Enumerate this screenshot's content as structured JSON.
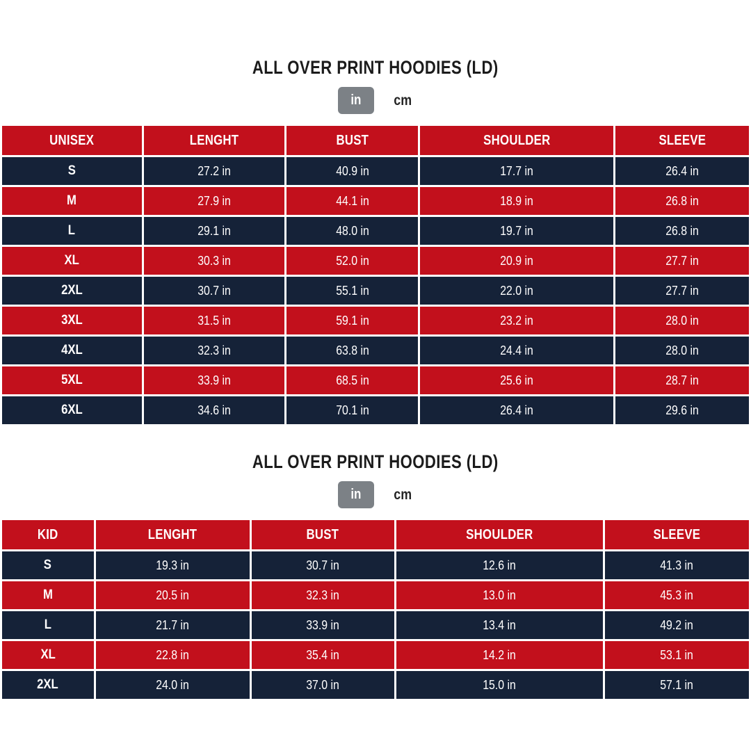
{
  "colors": {
    "red": "#c2101c",
    "navy": "#152238",
    "toggle_gray": "#7c8186",
    "cell_border": "#ffffff",
    "title_text": "#1b1b1b"
  },
  "sections": [
    {
      "title": "ALL OVER PRINT HOODIES (LD)",
      "unit_toggle": {
        "selected": "in",
        "in_label": "in",
        "cm_label": "cm"
      },
      "table": {
        "headers": [
          "UNISEX",
          "LENGHT",
          "BUST",
          "SHOULDER",
          "SLEEVE"
        ],
        "col_widths": [
          "18.9%",
          "19.1%",
          "17.8%",
          "26.1%",
          "18.1%"
        ],
        "rows": [
          {
            "size": "S",
            "values": [
              "27.2 in",
              "40.9 in",
              "17.7 in",
              "26.4 in"
            ]
          },
          {
            "size": "M",
            "values": [
              "27.9 in",
              "44.1 in",
              "18.9 in",
              "26.8 in"
            ]
          },
          {
            "size": "L",
            "values": [
              "29.1 in",
              "48.0 in",
              "19.7 in",
              "26.8 in"
            ]
          },
          {
            "size": "XL",
            "values": [
              "30.3 in",
              "52.0 in",
              "20.9 in",
              "27.7 in"
            ]
          },
          {
            "size": "2XL",
            "values": [
              "30.7 in",
              "55.1 in",
              "22.0 in",
              "27.7 in"
            ]
          },
          {
            "size": "3XL",
            "values": [
              "31.5 in",
              "59.1 in",
              "23.2 in",
              "28.0 in"
            ]
          },
          {
            "size": "4XL",
            "values": [
              "32.3 in",
              "63.8 in",
              "24.4 in",
              "28.0 in"
            ]
          },
          {
            "size": "5XL",
            "values": [
              "33.9 in",
              "68.5 in",
              "25.6 in",
              "28.7 in"
            ]
          },
          {
            "size": "6XL",
            "values": [
              "34.6 in",
              "70.1 in",
              "26.4 in",
              "29.6 in"
            ]
          }
        ]
      }
    },
    {
      "title": "ALL OVER PRINT HOODIES (LD)",
      "unit_toggle": {
        "selected": "in",
        "in_label": "in",
        "cm_label": "cm"
      },
      "table": {
        "headers": [
          "KID",
          "LENGHT",
          "BUST",
          "SHOULDER",
          "SLEEVE"
        ],
        "col_widths": [
          "12.5%",
          "20.8%",
          "19.3%",
          "27.9%",
          "19.5%"
        ],
        "rows": [
          {
            "size": "S",
            "values": [
              "19.3 in",
              "30.7 in",
              "12.6 in",
              "41.3 in"
            ]
          },
          {
            "size": "M",
            "values": [
              "20.5 in",
              "32.3 in",
              "13.0 in",
              "45.3 in"
            ]
          },
          {
            "size": "L",
            "values": [
              "21.7 in",
              "33.9 in",
              "13.4 in",
              "49.2 in"
            ]
          },
          {
            "size": "XL",
            "values": [
              "22.8 in",
              "35.4 in",
              "14.2 in",
              "53.1 in"
            ]
          },
          {
            "size": "2XL",
            "values": [
              "24.0 in",
              "37.0 in",
              "15.0 in",
              "57.1 in"
            ]
          }
        ]
      }
    }
  ]
}
